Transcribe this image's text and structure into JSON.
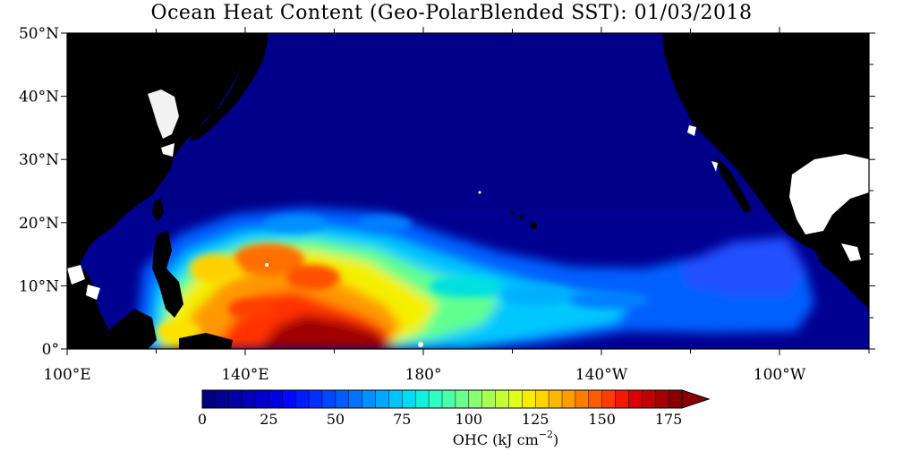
{
  "title": "Ocean Heat Content (Geo-PolarBlended SST): 01/03/2018",
  "map": {
    "region": "Western and Central North Pacific",
    "lat_range": [
      0,
      50
    ],
    "lon_range": [
      100,
      280
    ],
    "lat_ticks": [
      "50°N",
      "40°N",
      "30°N",
      "20°N",
      "10°N",
      "0°"
    ],
    "lon_ticks": [
      "100°E",
      "140°E",
      "180°",
      "140°W",
      "100°W"
    ],
    "land_color": "#000000",
    "missing_color": "#ffffff"
  },
  "colorbar": {
    "label_prefix": "OHC (kJ cm",
    "label_exp": "−2",
    "label_suffix": ")",
    "ticks": [
      "0",
      "25",
      "50",
      "75",
      "100",
      "125",
      "150",
      "175"
    ],
    "min": 0,
    "max": 175,
    "step": 5,
    "extend": "max",
    "colors": [
      "#00007f",
      "#000092",
      "#0000a6",
      "#0000bb",
      "#0000d0",
      "#0000e4",
      "#0008ff",
      "#001cff",
      "#0030ff",
      "#0048ff",
      "#005cff",
      "#0074ff",
      "#0090ff",
      "#00a8ff",
      "#00c4ff",
      "#00dcf8",
      "#12f0e0",
      "#30ffc4",
      "#4cffac",
      "#6cff8c",
      "#88ff70",
      "#a8ff54",
      "#c4ff38",
      "#e0ff1c",
      "#f8ec00",
      "#ffd400",
      "#ffb800",
      "#ff9c00",
      "#ff7c00",
      "#ff5c00",
      "#ff3c00",
      "#f41800",
      "#dc0000",
      "#c00000",
      "#a40000",
      "#880000"
    ]
  }
}
